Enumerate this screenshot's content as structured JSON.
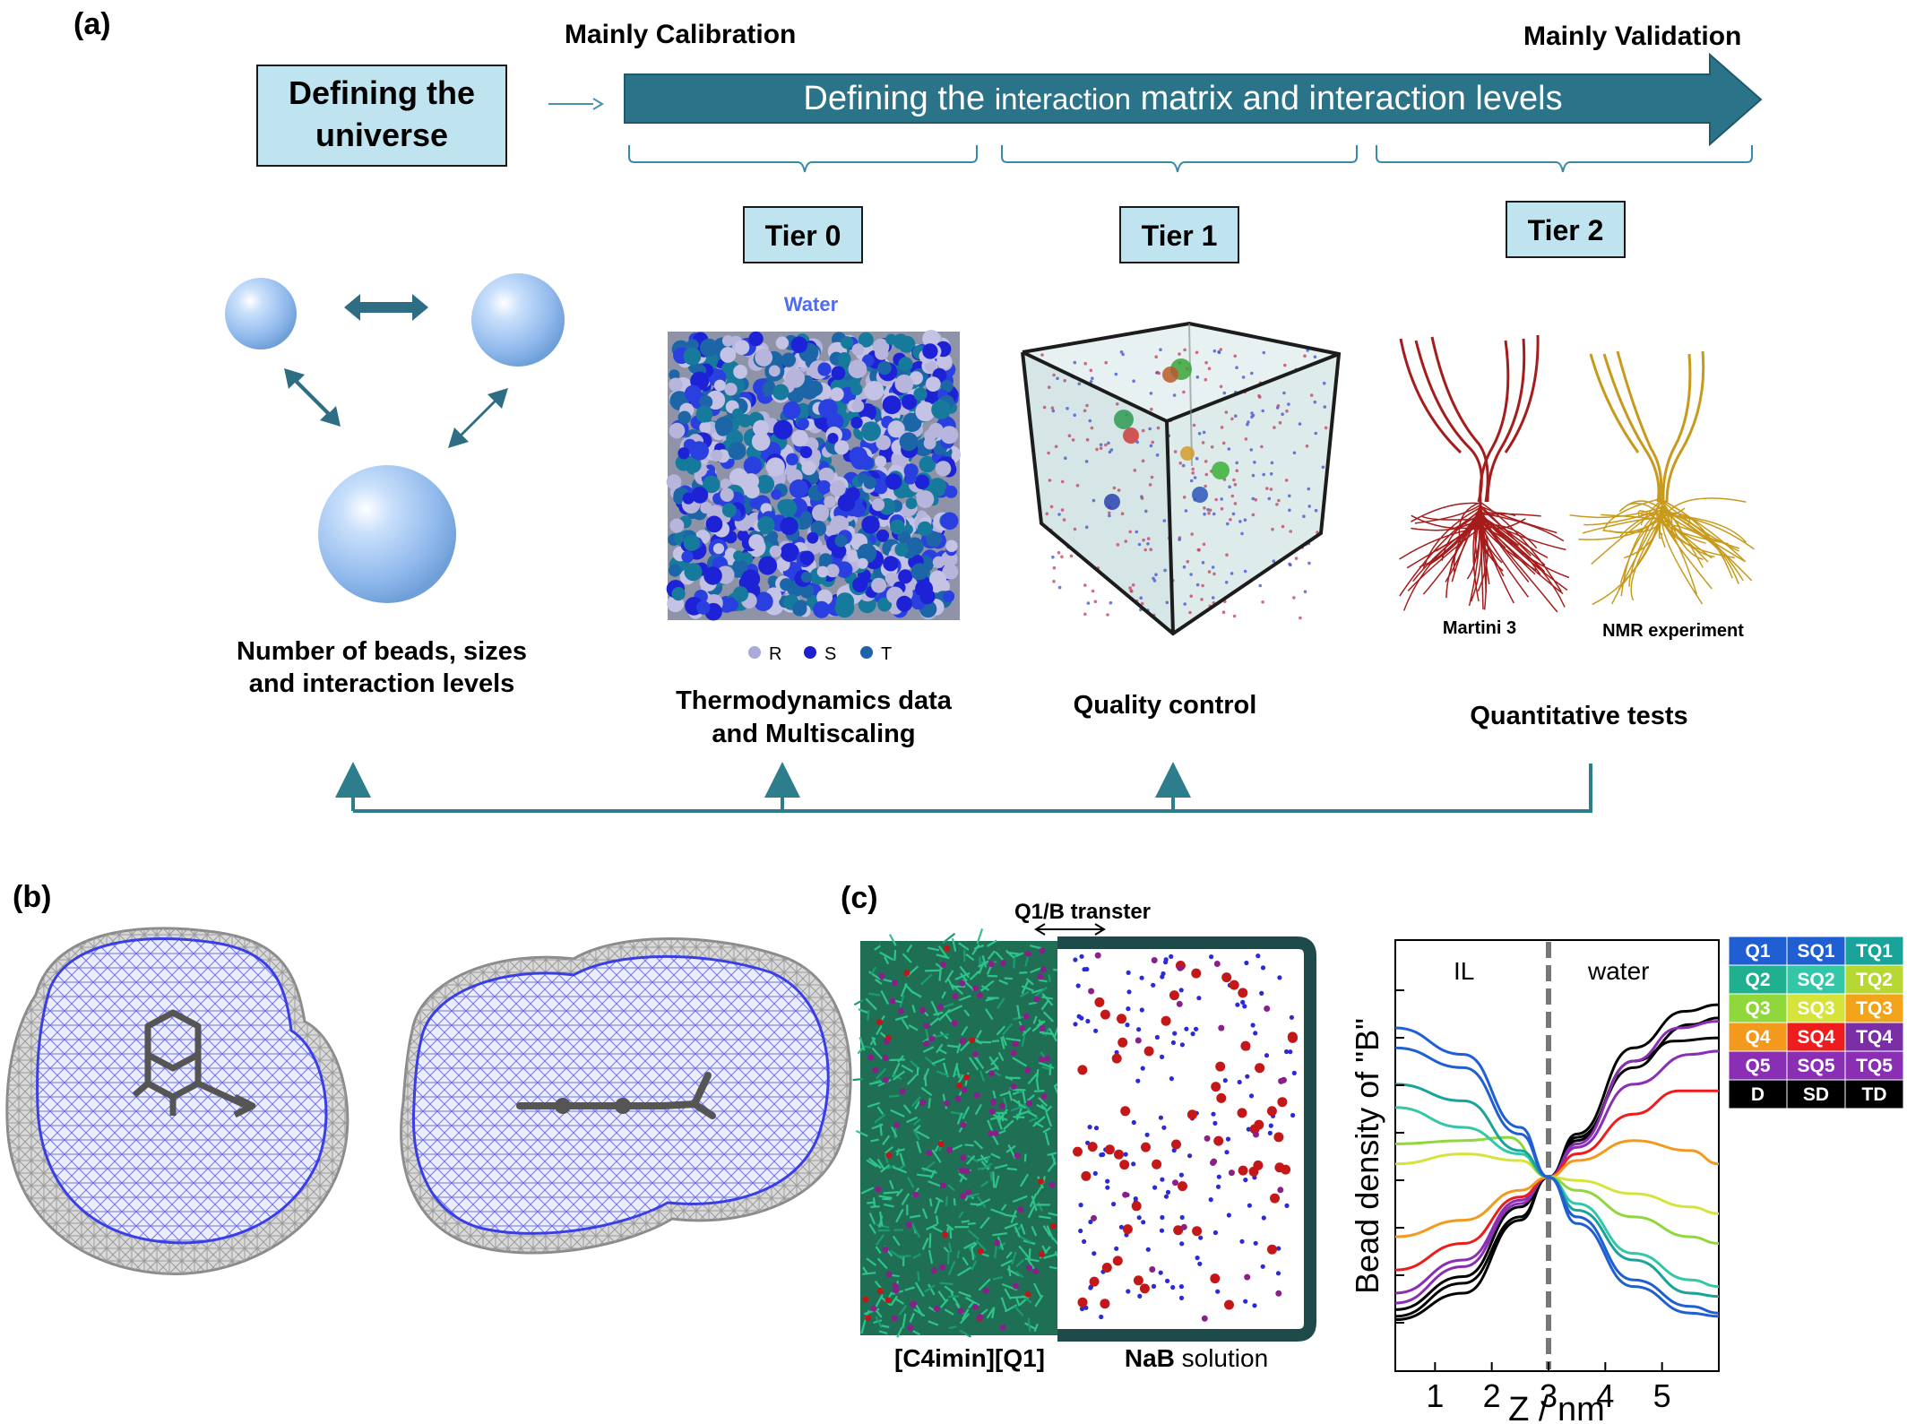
{
  "panel_a": {
    "label": "(a)",
    "left_header": "Mainly Calibration",
    "right_header": "Mainly Validation",
    "universe_box": [
      "Defining the",
      "universe"
    ],
    "arrow_text": {
      "part1": "Defining the ",
      "part2": "interaction",
      "part3": " matrix and interaction levels"
    },
    "tiers": [
      "Tier 0",
      "Tier 1",
      "Tier 2"
    ],
    "water_label": "Water",
    "legend_sizes": [
      "R",
      "S",
      "T"
    ],
    "structure_labels": [
      "Martini 3",
      "NMR experiment"
    ],
    "captions": {
      "beads": [
        "Number of beads, sizes",
        "and interaction levels"
      ],
      "tier0": [
        "Thermodynamics data",
        "and Multiscaling"
      ],
      "tier1": [
        "Quality control"
      ],
      "tier2": [
        "Quantitative tests"
      ]
    },
    "colors": {
      "box_fill": "#bfe4f0",
      "arrow": "#2a7389",
      "teal_line": "#2e7d8c",
      "sphere": "#9ec4f0"
    }
  },
  "panel_b": {
    "label": "(b)"
  },
  "panel_c": {
    "label": "(c)",
    "transfer_label": "Q1/B transter",
    "left_label": "[C4imin][Q1]",
    "right_label_bold": "NaB",
    "right_label_rest": " solution",
    "plot_regions": [
      "IL",
      "water"
    ],
    "bead_table": {
      "rows": [
        [
          {
            "t": "Q1",
            "c": "#1f5fd1"
          },
          {
            "t": "SQ1",
            "c": "#1f5fd1"
          },
          {
            "t": "TQ1",
            "c": "#1aa39b"
          }
        ],
        [
          {
            "t": "Q2",
            "c": "#20b090"
          },
          {
            "t": "SQ2",
            "c": "#33c7a8"
          },
          {
            "t": "TQ2",
            "c": "#b7d833"
          }
        ],
        [
          {
            "t": "Q3",
            "c": "#8fd73a"
          },
          {
            "t": "SQ3",
            "c": "#d6e33a"
          },
          {
            "t": "TQ3",
            "c": "#f2a51a"
          }
        ],
        [
          {
            "t": "Q4",
            "c": "#f39a1e"
          },
          {
            "t": "SQ4",
            "c": "#ee1c1c"
          },
          {
            "t": "TQ4",
            "c": "#7a2fa6"
          }
        ],
        [
          {
            "t": "Q5",
            "c": "#8a2fb3"
          },
          {
            "t": "SQ5",
            "c": "#8a2fb3"
          },
          {
            "t": "TQ5",
            "c": "#8a2fb3"
          }
        ],
        [
          {
            "t": "D",
            "c": "#000000"
          },
          {
            "t": "SD",
            "c": "#000000"
          },
          {
            "t": "TD",
            "c": "#000000"
          }
        ]
      ]
    }
  },
  "chart_data": {
    "type": "line",
    "xlabel": "Z / nm",
    "ylabel": "Bead density of \"B\"",
    "xlim": [
      0.3,
      6.0
    ],
    "ylim": [
      0,
      1
    ],
    "xticks": [
      "1",
      "2",
      "3",
      "4",
      "5"
    ],
    "divider_x": 3,
    "series": [
      {
        "color": "#000000",
        "values": [
          [
            0.3,
            0.02
          ],
          [
            1.5,
            0.1
          ],
          [
            2.5,
            0.32
          ],
          [
            3,
            0.45
          ],
          [
            3.5,
            0.58
          ],
          [
            4.5,
            0.84
          ],
          [
            5.4,
            0.95
          ],
          [
            6.0,
            0.97
          ]
        ]
      },
      {
        "color": "#000000",
        "values": [
          [
            0.3,
            0.05
          ],
          [
            1.5,
            0.15
          ],
          [
            2.5,
            0.36
          ],
          [
            3,
            0.45
          ],
          [
            3.5,
            0.56
          ],
          [
            4.5,
            0.8
          ],
          [
            5.5,
            0.91
          ],
          [
            6.0,
            0.93
          ]
        ]
      },
      {
        "color": "#000000",
        "values": [
          [
            0.3,
            0.03
          ],
          [
            1.5,
            0.13
          ],
          [
            2.5,
            0.33
          ],
          [
            3,
            0.45
          ],
          [
            3.5,
            0.57
          ],
          [
            4.5,
            0.78
          ],
          [
            5.2,
            0.86
          ],
          [
            6.0,
            0.87
          ]
        ]
      },
      {
        "color": "#8a2fb3",
        "values": [
          [
            0.3,
            0.07
          ],
          [
            1.5,
            0.18
          ],
          [
            2.5,
            0.37
          ],
          [
            3,
            0.45
          ],
          [
            3.5,
            0.55
          ],
          [
            4.5,
            0.8
          ],
          [
            5.3,
            0.9
          ],
          [
            6.0,
            0.92
          ]
        ]
      },
      {
        "color": "#8a2fb3",
        "values": [
          [
            0.3,
            0.1
          ],
          [
            1.5,
            0.2
          ],
          [
            2.5,
            0.38
          ],
          [
            3,
            0.45
          ],
          [
            3.5,
            0.54
          ],
          [
            4.5,
            0.73
          ],
          [
            5.5,
            0.82
          ],
          [
            6.0,
            0.83
          ]
        ]
      },
      {
        "color": "#ee1c1c",
        "values": [
          [
            0.3,
            0.17
          ],
          [
            1.5,
            0.25
          ],
          [
            2.5,
            0.39
          ],
          [
            3,
            0.45
          ],
          [
            3.5,
            0.52
          ],
          [
            4.5,
            0.64
          ],
          [
            5.3,
            0.71
          ],
          [
            6.0,
            0.71
          ]
        ]
      },
      {
        "color": "#f39a1e",
        "values": [
          [
            0.3,
            0.27
          ],
          [
            1.5,
            0.32
          ],
          [
            2.5,
            0.41
          ],
          [
            3,
            0.45
          ],
          [
            3.5,
            0.5
          ],
          [
            4.5,
            0.56
          ],
          [
            5.5,
            0.53
          ],
          [
            6.0,
            0.49
          ]
        ]
      },
      {
        "color": "#d6e33a",
        "values": [
          [
            0.3,
            0.49
          ],
          [
            1.5,
            0.52
          ],
          [
            2.5,
            0.5
          ],
          [
            3,
            0.45
          ],
          [
            3.5,
            0.44
          ],
          [
            4.5,
            0.4
          ],
          [
            5.5,
            0.36
          ],
          [
            6.0,
            0.34
          ]
        ]
      },
      {
        "color": "#8fd73a",
        "values": [
          [
            0.3,
            0.55
          ],
          [
            1.5,
            0.56
          ],
          [
            2.3,
            0.57
          ],
          [
            3,
            0.45
          ],
          [
            3.5,
            0.41
          ],
          [
            4.5,
            0.33
          ],
          [
            5.5,
            0.27
          ],
          [
            6.0,
            0.25
          ]
        ]
      },
      {
        "color": "#33c7a8",
        "values": [
          [
            0.3,
            0.66
          ],
          [
            1.5,
            0.6
          ],
          [
            2.5,
            0.52
          ],
          [
            3,
            0.45
          ],
          [
            3.5,
            0.37
          ],
          [
            4.5,
            0.22
          ],
          [
            5.5,
            0.14
          ],
          [
            6.0,
            0.12
          ]
        ]
      },
      {
        "color": "#1aa39b",
        "values": [
          [
            0.3,
            0.73
          ],
          [
            1.5,
            0.68
          ],
          [
            2.5,
            0.53
          ],
          [
            3,
            0.45
          ],
          [
            3.5,
            0.35
          ],
          [
            4.5,
            0.2
          ],
          [
            5.5,
            0.1
          ],
          [
            6.0,
            0.09
          ]
        ]
      },
      {
        "color": "#1f5fd1",
        "values": [
          [
            0.3,
            0.84
          ],
          [
            1.5,
            0.78
          ],
          [
            2.5,
            0.58
          ],
          [
            3,
            0.45
          ],
          [
            3.5,
            0.33
          ],
          [
            4.5,
            0.14
          ],
          [
            5.5,
            0.06
          ],
          [
            6.0,
            0.04
          ]
        ]
      },
      {
        "color": "#1f5fd1",
        "values": [
          [
            0.3,
            0.9
          ],
          [
            1.5,
            0.82
          ],
          [
            2.5,
            0.6
          ],
          [
            3,
            0.45
          ],
          [
            3.5,
            0.31
          ],
          [
            4.5,
            0.12
          ],
          [
            5.5,
            0.04
          ],
          [
            6.0,
            0.03
          ]
        ]
      }
    ]
  }
}
